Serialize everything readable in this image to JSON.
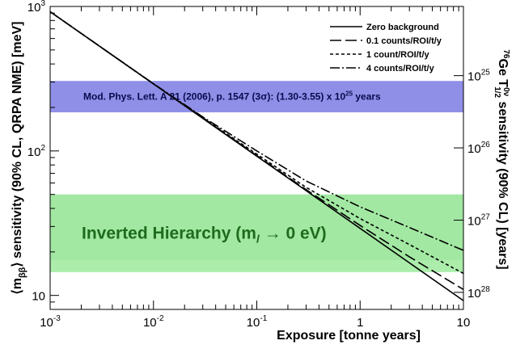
{
  "chart_data": {
    "type": "line",
    "xlabel": "Exposure [tonne years]",
    "ylabel": "⟨m_ββ⟩ sensitivity (90% CL, QRPA NME) [meV]",
    "ylabel_right": "76Ge T1/2 0ν sensitivity (90% CL) [years]",
    "x_scale": "log",
    "y_scale": "log",
    "xlim": [
      0.001,
      10
    ],
    "ylim": [
      8,
      1000
    ],
    "x_tick_values": [
      0.001,
      0.01,
      0.1,
      1,
      10
    ],
    "x_tick_labels": [
      {
        "base": "10",
        "exp": "-3"
      },
      {
        "base": "10",
        "exp": "-2"
      },
      {
        "base": "10",
        "exp": "-1"
      },
      {
        "base": "1",
        "exp": ""
      },
      {
        "base": "10",
        "exp": ""
      }
    ],
    "y_tick_values": [
      10,
      100,
      1000
    ],
    "y_tick_labels": [
      {
        "base": "10",
        "exp": ""
      },
      {
        "base": "10",
        "exp": "2"
      },
      {
        "base": "10",
        "exp": "3"
      }
    ],
    "right_tick_values_meV": [
      10.5,
      33.2,
      105,
      332
    ],
    "right_tick_labels": [
      {
        "base": "10",
        "exp": "28"
      },
      {
        "base": "10",
        "exp": "27"
      },
      {
        "base": "10",
        "exp": "26"
      },
      {
        "base": "10",
        "exp": "25"
      }
    ],
    "series": [
      {
        "name": "Zero background",
        "dash": "solid",
        "x": [
          0.001,
          0.01,
          0.1,
          1,
          10
        ],
        "y": [
          920,
          291,
          92,
          29.1,
          9.2
        ]
      },
      {
        "name": "0.1 counts/ROI/t/y",
        "dash": "longdash",
        "x": [
          0.001,
          0.01,
          0.03,
          0.1,
          0.3,
          1,
          3,
          10
        ],
        "y": [
          920,
          291,
          169,
          93,
          54,
          30.5,
          18.5,
          11.0
        ]
      },
      {
        "name": "1 count/ROI/t/y",
        "dash": "shortdash",
        "x": [
          0.001,
          0.01,
          0.03,
          0.1,
          0.3,
          1,
          3,
          10
        ],
        "y": [
          920,
          291,
          170,
          95,
          56,
          34,
          22.5,
          14.2
        ]
      },
      {
        "name": "4 counts/ROI/t/y",
        "dash": "dashdot",
        "x": [
          0.001,
          0.01,
          0.03,
          0.1,
          0.3,
          1,
          3,
          10
        ],
        "y": [
          920,
          292,
          172,
          100,
          62,
          41,
          29.5,
          20.5
        ]
      }
    ],
    "bands": [
      {
        "name": "Mod. Phys. Lett. A 21 (2006), p. 1547 (3σ): (1.30-3.55) x 10²⁵ years",
        "y_range": [
          185,
          305
        ],
        "color": "#8f8fe8"
      },
      {
        "name": "Inverted Hierarchy (m_l → 0 eV)",
        "y_range": [
          14.5,
          50
        ],
        "color": "#9eea9e"
      }
    ],
    "band_labels": {
      "hm_prefix": "Mod. Phys. Lett. A 21 (2006), p. 1547 (3",
      "hm_sigma": "σ",
      "hm_mid": "): (1.30-3.55) x 10",
      "hm_exp": "25",
      "hm_suffix": " years",
      "ih_prefix": "Inverted Hierarchy (m",
      "ih_sub": "l",
      "ih_suffix": " → 0 eV)"
    },
    "left_axis": {
      "bracket_open": "⟨m",
      "sub": "ββ",
      "bracket_close": "⟩",
      "rest": " sensitivity (90% CL, QRPA NME) [meV]"
    },
    "right_axis": {
      "iso_mass": "76",
      "element": "Ge T",
      "half_sub": "1/2",
      "mode_sup": "0ν",
      "rest": " sensitivity (90% CL) [years]"
    },
    "legend_position": "top-right",
    "colors": {
      "zero": "#000000",
      "hm_band": "#8f8fe8",
      "ih_band": "#9eea9e"
    }
  }
}
